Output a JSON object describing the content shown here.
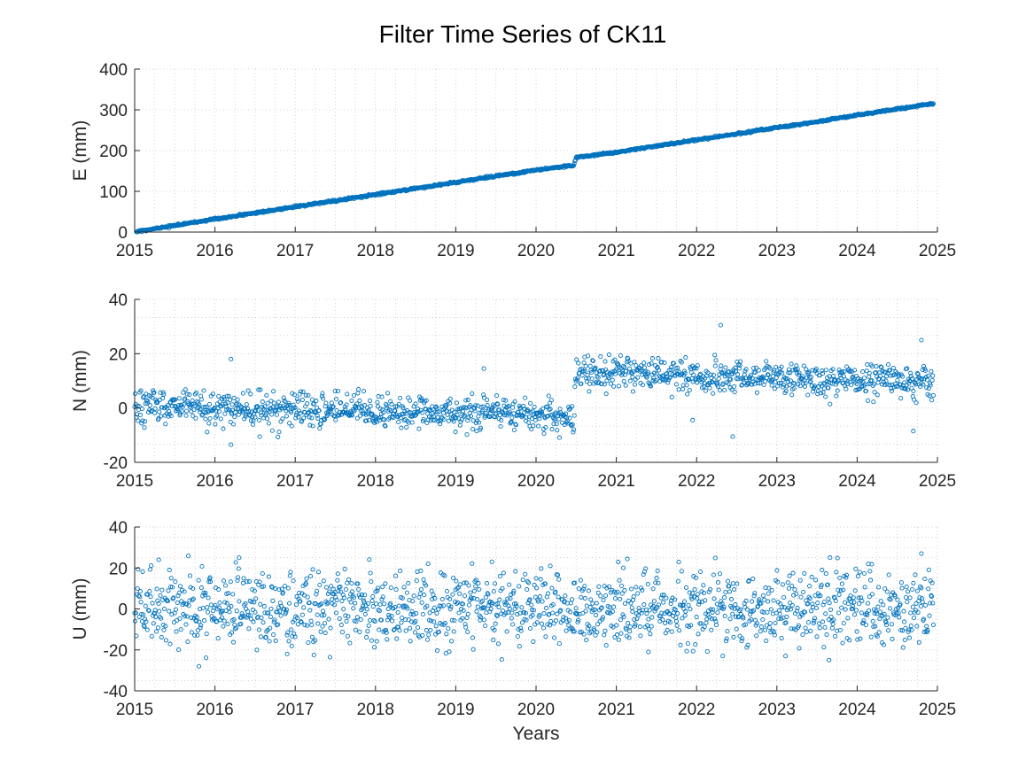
{
  "figure": {
    "title": "Filter Time Series of CK11",
    "marker_color": "#0072BD"
  },
  "chart_data": [
    {
      "type": "scatter",
      "ylabel": "E (mm)",
      "xlabel": "",
      "xlim": [
        2015,
        2025
      ],
      "ylim": [
        0,
        400
      ],
      "xticks": [
        2015,
        2016,
        2017,
        2018,
        2019,
        2020,
        2021,
        2022,
        2023,
        2024,
        2025
      ],
      "yticks": [
        0,
        100,
        200,
        300,
        400
      ],
      "grid": "minor-dotted",
      "series": [
        {
          "x": [
            2015.0,
            2015.5,
            2016.0,
            2016.5,
            2017.0,
            2017.5,
            2018.0,
            2018.5,
            2019.0,
            2019.5,
            2020.0,
            2020.47,
            2020.5,
            2021.0,
            2021.5,
            2022.0,
            2022.5,
            2023.0,
            2023.5,
            2024.0,
            2024.5,
            2024.95
          ],
          "y": [
            0,
            16,
            32,
            47,
            62,
            77,
            92,
            107,
            122,
            137,
            152,
            164,
            183,
            196,
            211,
            226,
            241,
            256,
            271,
            287,
            302,
            315
          ]
        }
      ]
    },
    {
      "type": "scatter",
      "ylabel": "N (mm)",
      "xlabel": "",
      "xlim": [
        2015,
        2025
      ],
      "ylim": [
        -20,
        40
      ],
      "xticks": [
        2015,
        2016,
        2017,
        2018,
        2019,
        2020,
        2021,
        2022,
        2023,
        2024,
        2025
      ],
      "yticks": [
        -20,
        0,
        20,
        40
      ],
      "grid": "minor-dotted",
      "series": [
        {
          "x": [
            2015.0,
            2016.0,
            2017.0,
            2018.0,
            2019.0,
            2020.0,
            2020.47,
            2020.5,
            2021.0,
            2022.0,
            2023.0,
            2024.0,
            2024.95
          ],
          "y": [
            0.5,
            -0.5,
            -0.5,
            -1.0,
            -1.5,
            -2.5,
            -3.0,
            13.0,
            13.0,
            12.0,
            11.0,
            10.0,
            9.5
          ]
        }
      ],
      "outliers": [
        [
          2016.2,
          18
        ],
        [
          2019.35,
          14.5
        ],
        [
          2022.3,
          30.5
        ],
        [
          2024.8,
          25
        ],
        [
          2022.45,
          -10.5
        ],
        [
          2024.7,
          -8.5
        ],
        [
          2016.2,
          -13.5
        ],
        [
          2021.95,
          -4.5
        ]
      ]
    },
    {
      "type": "scatter",
      "ylabel": "U (mm)",
      "xlabel": "Years",
      "xlim": [
        2015,
        2025
      ],
      "ylim": [
        -40,
        40
      ],
      "xticks": [
        2015,
        2016,
        2017,
        2018,
        2019,
        2020,
        2021,
        2022,
        2023,
        2024,
        2025
      ],
      "yticks": [
        -40,
        -20,
        0,
        20,
        40
      ],
      "grid": "minor-dotted",
      "series": [
        {
          "x": [
            2015.0,
            2025.0
          ],
          "y": [
            0,
            0
          ]
        }
      ],
      "outliers": [
        [
          2015.3,
          24
        ],
        [
          2016.3,
          25
        ],
        [
          2019.45,
          23
        ],
        [
          2024.8,
          27
        ],
        [
          2015.8,
          -28
        ],
        [
          2023.65,
          -25
        ],
        [
          2016.9,
          -22
        ],
        [
          2021.4,
          -21
        ]
      ]
    }
  ]
}
